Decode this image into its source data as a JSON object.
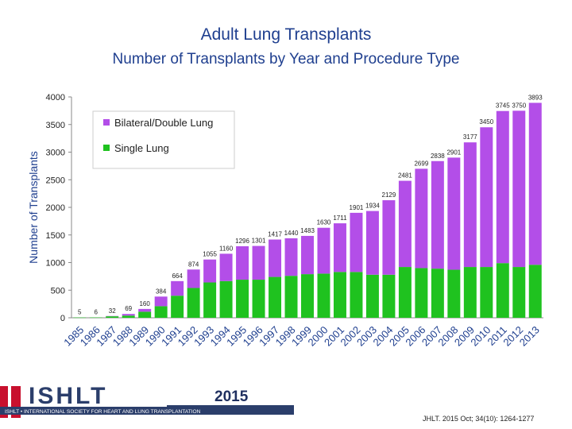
{
  "chart_data": {
    "type": "bar",
    "stacked": true,
    "title": "Adult Lung Transplants",
    "subtitle": "Number of Transplants by Year and Procedure Type",
    "xlabel": "",
    "ylabel": "Number of Transplants",
    "ylim": [
      0,
      4000
    ],
    "yticks": [
      "0",
      "500",
      "1000",
      "1500",
      "2000",
      "2500",
      "3000",
      "3500",
      "4000"
    ],
    "categories": [
      "1985",
      "1986",
      "1987",
      "1988",
      "1989",
      "1990",
      "1991",
      "1992",
      "1993",
      "1994",
      "1995",
      "1996",
      "1997",
      "1998",
      "1999",
      "2000",
      "2001",
      "2002",
      "2003",
      "2004",
      "2005",
      "2006",
      "2007",
      "2008",
      "2009",
      "2010",
      "2011",
      "2012",
      "2013"
    ],
    "totals": [
      "5",
      "6",
      "32",
      "69",
      "160",
      "384",
      "664",
      "874",
      "1055",
      "1160",
      "1296",
      "1301",
      "1417",
      "1440",
      "1483",
      "1630",
      "1711",
      "1901",
      "1934",
      "2129",
      "2481",
      "2699",
      "2838",
      "2901",
      "3177",
      "3450",
      "3745",
      "3750",
      "3893"
    ],
    "series": [
      {
        "name": "Single Lung",
        "color": "#1fc21f",
        "values": [
          5,
          6,
          27,
          40,
          110,
          210,
          400,
          540,
          640,
          665,
          690,
          690,
          740,
          760,
          790,
          800,
          830,
          830,
          780,
          780,
          920,
          900,
          890,
          870,
          920,
          920,
          990,
          920,
          960
        ]
      },
      {
        "name": "Bilateral/Double Lung",
        "color": "#b34ee8",
        "values": [
          0,
          0,
          5,
          29,
          50,
          174,
          264,
          334,
          415,
          495,
          606,
          611,
          677,
          680,
          693,
          830,
          881,
          1071,
          1154,
          1349,
          1561,
          1799,
          1948,
          2031,
          2257,
          2530,
          2755,
          2830,
          2933
        ]
      }
    ],
    "legend_position": "top-left",
    "grid": false
  },
  "footer": {
    "logo_letters": "ISHLT",
    "org_name": "ISHLT • INTERNATIONAL SOCIETY FOR HEART AND LUNG TRANSPLANTATION",
    "year": "2015",
    "citation": "JHLT. 2015 Oct; 34(10): 1264-1277"
  }
}
